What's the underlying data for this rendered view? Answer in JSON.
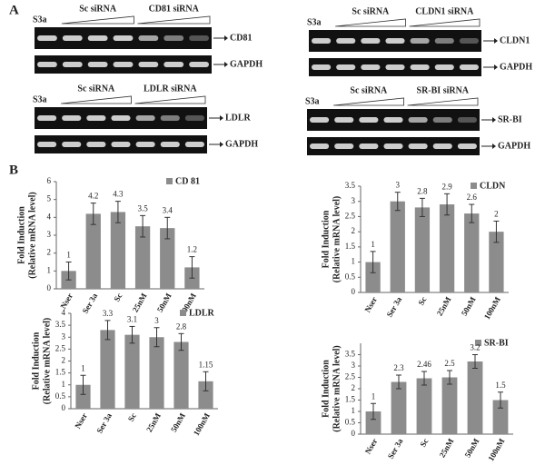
{
  "panel_a": {
    "label": "A",
    "gels": [
      {
        "control": "S3a",
        "sc": "Sc siRNA",
        "sirna": "CD81 siRNA",
        "target": "CD81",
        "loading": "GAPDH"
      },
      {
        "control": "S3a",
        "sc": "Sc siRNA",
        "sirna": "CLDN1 siRNA",
        "target": "CLDN1",
        "loading": "GAPDH"
      },
      {
        "control": "S3a",
        "sc": "Sc siRNA",
        "sirna": "LDLR siRNA",
        "target": "LDLR",
        "loading": "GAPDH"
      },
      {
        "control": "S3a",
        "sc": "Sc siRNA",
        "sirna": "SR-BI siRNA",
        "target": "SR-BI",
        "loading": "GAPDH"
      }
    ]
  },
  "panel_b": {
    "label": "B"
  },
  "chart_data": [
    {
      "type": "bar",
      "title": "CD 81",
      "ylabel": [
        "Fold Induction",
        "(Relative mRNA level)"
      ],
      "color": "#8c8c8c",
      "categories": [
        "Nser",
        "Ser 3a",
        "Sc",
        "25nM",
        "50nM",
        "100nM"
      ],
      "values": [
        1,
        4.2,
        4.3,
        3.5,
        3.4,
        1.2
      ],
      "errors": [
        0.5,
        0.6,
        0.6,
        0.6,
        0.6,
        0.6
      ],
      "ylim": [
        0,
        6
      ],
      "yticks": [
        0,
        1,
        2,
        3,
        4,
        5,
        6
      ]
    },
    {
      "type": "bar",
      "title": "CLDN",
      "ylabel": [
        "Fold Induction",
        "(Relative mRNA level)"
      ],
      "color": "#8c8c8c",
      "categories": [
        "Nser",
        "Ser 3a",
        "Sc",
        "25nM",
        "50nM",
        "100nM"
      ],
      "values": [
        1,
        3,
        2.8,
        2.9,
        2.6,
        2
      ],
      "errors": [
        0.35,
        0.3,
        0.3,
        0.35,
        0.3,
        0.35
      ],
      "ylim": [
        0,
        3.5
      ],
      "yticks": [
        0,
        0.5,
        1,
        1.5,
        2,
        2.5,
        3,
        3.5
      ]
    },
    {
      "type": "bar",
      "title": "LDLR",
      "ylabel": [
        "Fold Induction",
        "(Relative mRNA level)"
      ],
      "color": "#8c8c8c",
      "categories": [
        "Nser",
        "Ser 3a",
        "Sc",
        "25nM",
        "50nM",
        "100nM"
      ],
      "values": [
        1,
        3.3,
        3.1,
        3,
        2.8,
        1.15
      ],
      "errors": [
        0.4,
        0.4,
        0.35,
        0.4,
        0.35,
        0.4
      ],
      "ylim": [
        0,
        4
      ],
      "yticks": [
        0,
        0.5,
        1,
        1.5,
        2,
        2.5,
        3,
        3.5,
        4
      ]
    },
    {
      "type": "bar",
      "title": "SR-BI",
      "ylabel": [
        "Fold Induction",
        "(Relative mRNA level)"
      ],
      "color": "#8c8c8c",
      "categories": [
        "Nser",
        "Ser 3a",
        "Sc",
        "25nM",
        "50nM",
        "100nM"
      ],
      "values": [
        1,
        2.3,
        2.46,
        2.5,
        3.2,
        1.5
      ],
      "errors": [
        0.35,
        0.3,
        0.3,
        0.3,
        0.3,
        0.35
      ],
      "ylim": [
        0,
        4
      ],
      "yticks": [
        0,
        0.5,
        1,
        1.5,
        2,
        2.5,
        3,
        3.5
      ]
    }
  ]
}
